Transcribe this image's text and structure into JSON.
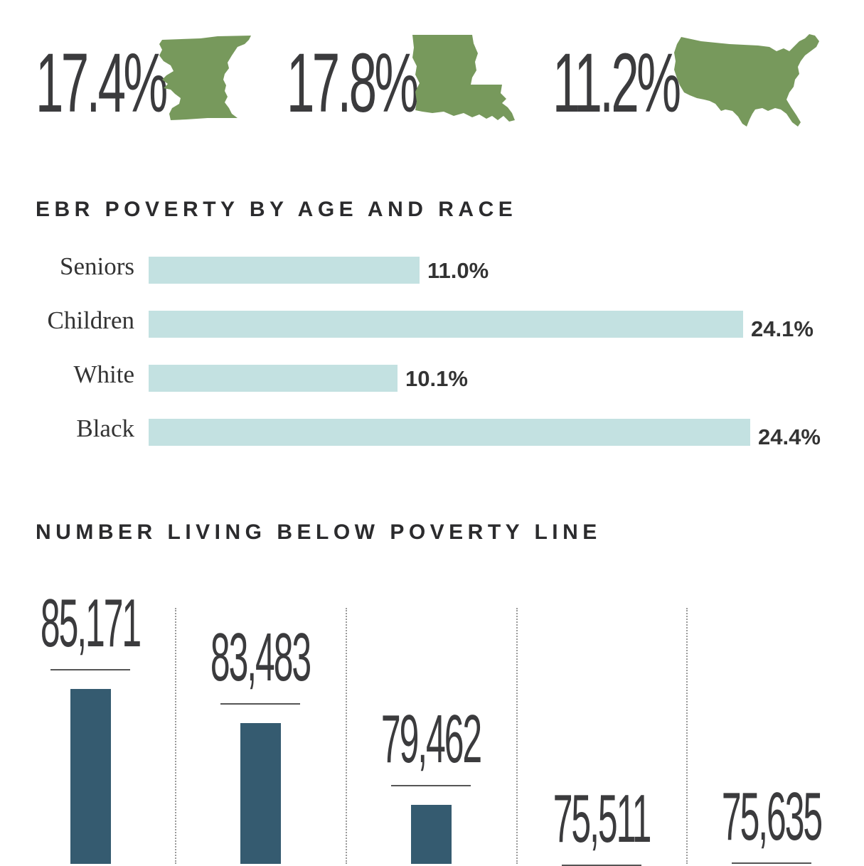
{
  "colors": {
    "map_green": "#77995c",
    "bar_light": "#c3e1e1",
    "bar_dark": "#355b70",
    "text": "#3b3b3d"
  },
  "headline_stats": [
    {
      "value": "17.4%",
      "icon": "east-baton-rouge-parish-map-icon"
    },
    {
      "value": "17.8%",
      "icon": "louisiana-map-icon"
    },
    {
      "value": "11.2%",
      "icon": "united-states-map-icon"
    }
  ],
  "chart_data": [
    {
      "type": "bar",
      "orientation": "horizontal",
      "title": "EBR POVERTY BY AGE AND RACE",
      "categories": [
        "Seniors",
        "Children",
        "White",
        "Black"
      ],
      "values": [
        11.0,
        24.1,
        10.1,
        24.4
      ],
      "value_labels": [
        "11.0%",
        "24.1%",
        "10.1%",
        "24.4%"
      ],
      "xlim": [
        0,
        24.4
      ]
    },
    {
      "type": "bar",
      "orientation": "vertical",
      "title": "NUMBER LIVING BELOW POVERTY LINE",
      "values": [
        85171,
        83483,
        79462,
        75511,
        75635
      ],
      "value_labels": [
        "85,171",
        "83,483",
        "79,462",
        "75,511",
        "75,635"
      ],
      "grid": false
    }
  ]
}
